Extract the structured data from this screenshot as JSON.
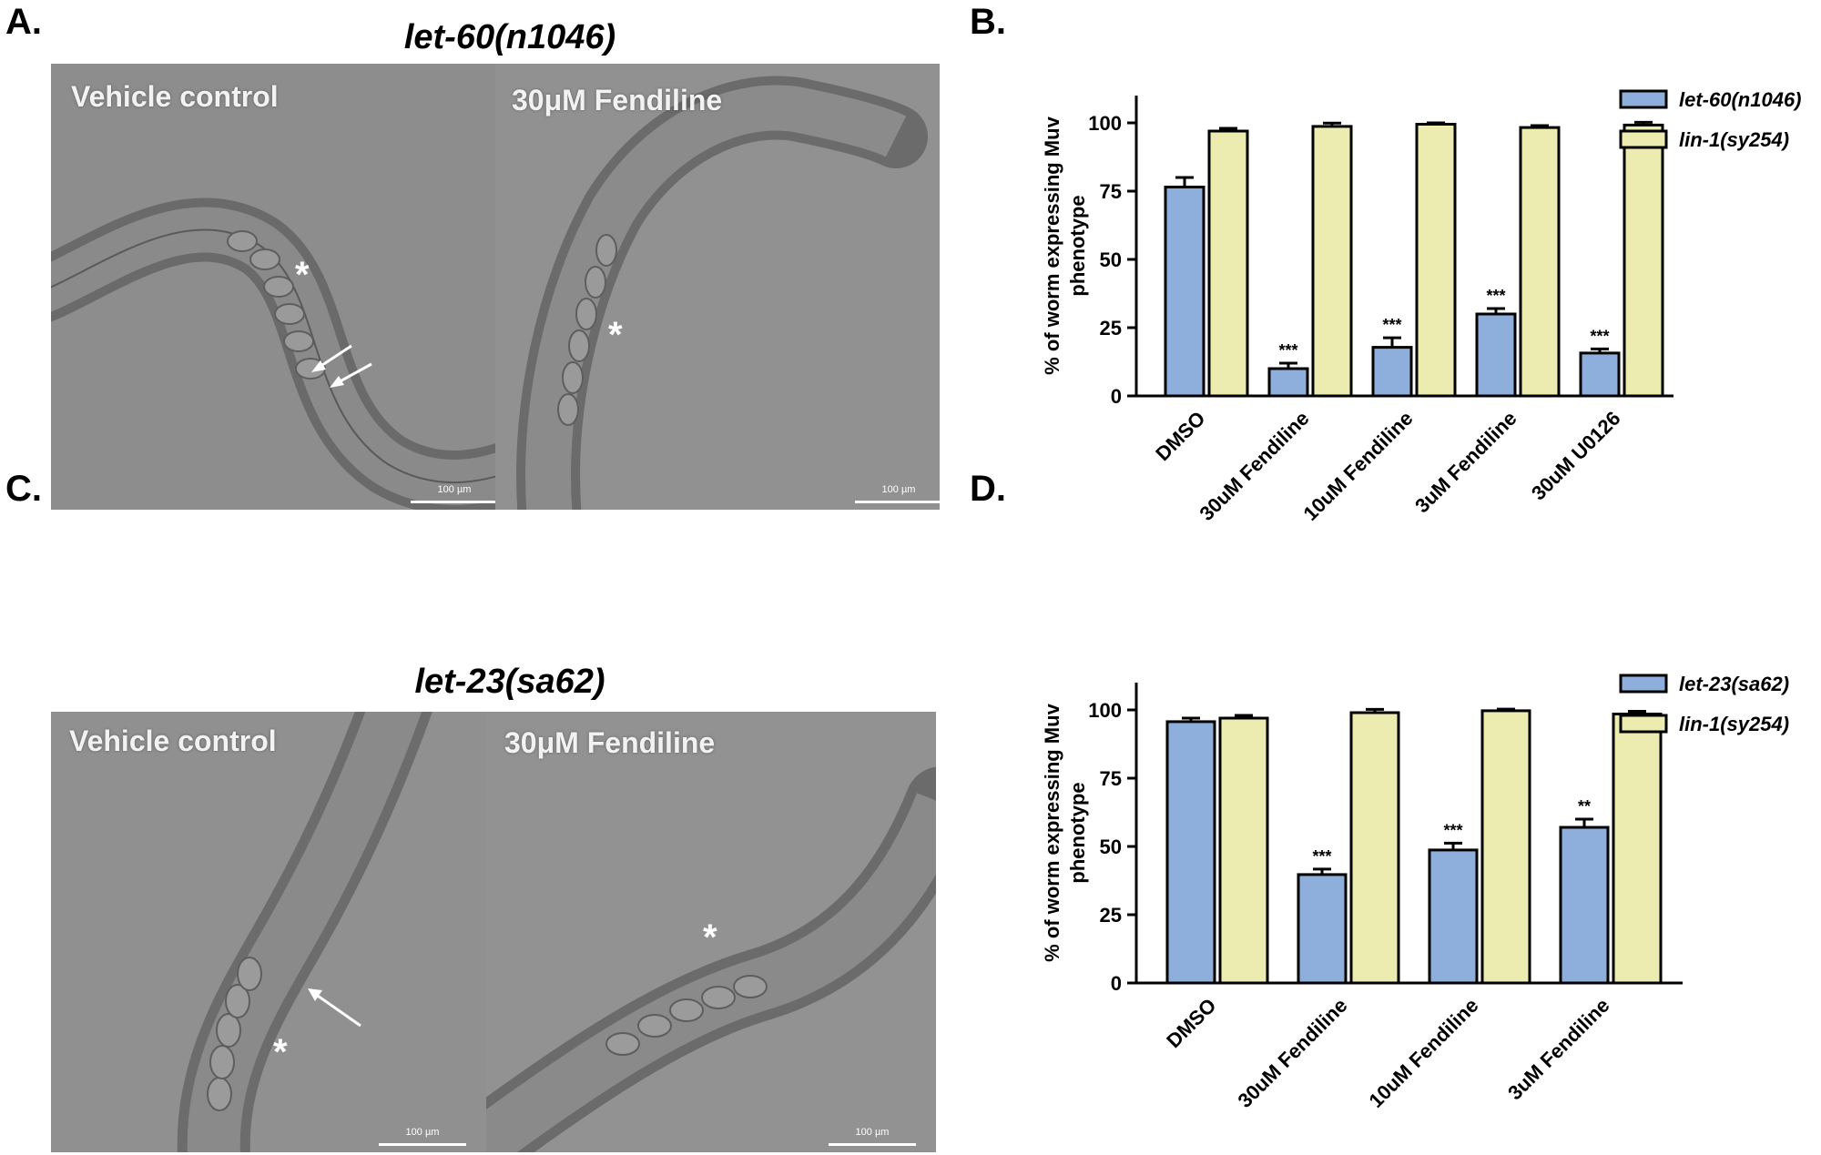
{
  "panels": {
    "A": {
      "letter": "A.",
      "title": "let-60(n1046)",
      "left_label": "Vehicle control",
      "right_label": "30μM Fendiline",
      "scalebar": "100 µm",
      "asterisk": "*"
    },
    "B": {
      "letter": "B."
    },
    "C": {
      "letter": "C.",
      "title": "let-23(sa62)",
      "left_label": "Vehicle control",
      "right_label": "30μM Fendiline",
      "scalebar": "100 µm",
      "asterisk": "*"
    },
    "D": {
      "letter": "D."
    }
  },
  "colors": {
    "blue_bar": "#8eaedc",
    "yellow_bar": "#ecebb0",
    "image_bg": "#8e8e8e"
  },
  "chart_data": [
    {
      "id": "B",
      "type": "bar",
      "title": "",
      "ylabel": "% of worm expressing Muv phenotype",
      "xlabel": "",
      "ylim": [
        0,
        110
      ],
      "yticks": [
        "0",
        "25",
        "50",
        "75",
        "100"
      ],
      "categories": [
        "DMSO",
        "30uM Fendiline",
        "10uM Fendiline",
        "3uM Fendiline",
        "30uM U0126"
      ],
      "series": [
        {
          "name": "let-60(n1046)",
          "color": "#8eaedc",
          "values": [
            76.5,
            10,
            17.8,
            30,
            15.7
          ],
          "errors": [
            3.5,
            2,
            3.5,
            2,
            1.5
          ],
          "annotations": [
            "",
            "***",
            "***",
            "***",
            "***"
          ]
        },
        {
          "name": "lin-1(sy254)",
          "color": "#ecebb0",
          "values": [
            97,
            98.7,
            99.5,
            98.3,
            99.2
          ],
          "errors": [
            1,
            1.2,
            0.5,
            0.7,
            1
          ],
          "annotations": [
            "",
            "",
            "",
            "",
            ""
          ]
        }
      ],
      "legend_position": "top-right",
      "grid": false
    },
    {
      "id": "D",
      "type": "bar",
      "title": "",
      "ylabel": "% of worm expressing Muv phenotype",
      "xlabel": "",
      "ylim": [
        0,
        110
      ],
      "yticks": [
        "0",
        "25",
        "50",
        "75",
        "100"
      ],
      "categories": [
        "DMSO",
        "30uM Fendiline",
        "10uM Fendiline",
        "3uM Fendiline"
      ],
      "series": [
        {
          "name": "let-23(sa62)",
          "color": "#8eaedc",
          "values": [
            95.7,
            39.7,
            48.7,
            57
          ],
          "errors": [
            1.3,
            2,
            2.5,
            3
          ],
          "annotations": [
            "",
            "***",
            "***",
            "**"
          ]
        },
        {
          "name": "lin-1(sy254)",
          "color": "#ecebb0",
          "values": [
            97,
            99,
            99.7,
            98.5
          ],
          "errors": [
            1,
            1.2,
            0.6,
            1
          ],
          "annotations": [
            "",
            "",
            "",
            ""
          ]
        }
      ],
      "legend_position": "top-right",
      "grid": false
    }
  ]
}
